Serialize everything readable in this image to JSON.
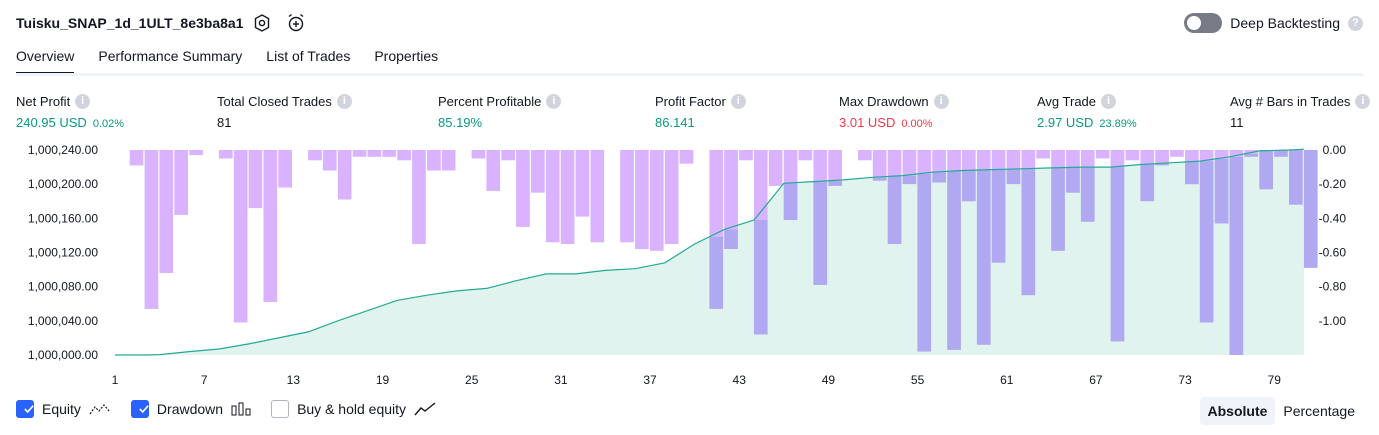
{
  "header": {
    "title": "Tuisku_SNAP_1d_1ULT_8e3ba8a1",
    "settings_icon": "gear-icon",
    "alert_icon": "alarm-add-icon",
    "deep_backtesting_label": "Deep Backtesting",
    "deep_backtesting_on": false
  },
  "tabs": [
    {
      "label": "Overview",
      "active": true
    },
    {
      "label": "Performance Summary",
      "active": false
    },
    {
      "label": "List of Trades",
      "active": false
    },
    {
      "label": "Properties",
      "active": false
    }
  ],
  "stats": {
    "net_profit": {
      "label": "Net Profit",
      "value": "240.95 USD",
      "sub": "0.02%"
    },
    "total_closed_trades": {
      "label": "Total Closed Trades",
      "value": "81"
    },
    "percent_profitable": {
      "label": "Percent Profitable",
      "value": "85.19%"
    },
    "profit_factor": {
      "label": "Profit Factor",
      "value": "86.141"
    },
    "max_drawdown": {
      "label": "Max Drawdown",
      "value": "3.01 USD",
      "sub": "0.00%"
    },
    "avg_trade": {
      "label": "Avg Trade",
      "value": "2.97 USD",
      "sub": "23.89%"
    },
    "avg_bars": {
      "label": "Avg # Bars in Trades",
      "value": "11"
    }
  },
  "colors": {
    "equity_line": "#22ab94",
    "equity_fill": "#e0f3ee",
    "drawdown_bar": "#d9b3ff",
    "drawdown_bar_overlap": "#b0a8f0",
    "positive": "#089981",
    "negative": "#f23645",
    "checkbox": "#2962ff"
  },
  "legend": {
    "equity_label": "Equity",
    "equity_checked": true,
    "drawdown_label": "Drawdown",
    "drawdown_checked": true,
    "buyhold_label": "Buy & hold equity",
    "buyhold_checked": false
  },
  "mode": {
    "absolute_label": "Absolute",
    "percentage_label": "Percentage",
    "selected": "Absolute"
  },
  "chart_data": {
    "type": "line",
    "x_ticks": [
      "1",
      "7",
      "13",
      "19",
      "25",
      "31",
      "37",
      "43",
      "49",
      "55",
      "61",
      "67",
      "73",
      "79"
    ],
    "y_left_ticks": [
      "1,000,240.00",
      "1,000,200.00",
      "1,000,160.00",
      "1,000,120.00",
      "1,000,080.00",
      "1,000,040.00",
      "1,000,000.00"
    ],
    "y_right_ticks": [
      "0.00",
      "-0.20",
      "-0.40",
      "-0.60",
      "-0.80",
      "-1.00"
    ],
    "xlim": [
      1,
      81
    ],
    "ylim_left": [
      1000000,
      1000240
    ],
    "ylim_right": [
      -1.2,
      0
    ],
    "equity": {
      "x": [
        1,
        3,
        4,
        6,
        8,
        10,
        12,
        14,
        16,
        18,
        20,
        22,
        24,
        26,
        28,
        30,
        32,
        34,
        36,
        38,
        40,
        42,
        44,
        46,
        48,
        50,
        52,
        54,
        56,
        58,
        60,
        62,
        64,
        66,
        68,
        70,
        72,
        74,
        76,
        78,
        80,
        81
      ],
      "y": [
        1000000.0,
        1000000.0,
        1000000.5,
        1000004,
        1000007,
        1000013,
        1000020,
        1000027,
        1000040,
        1000052,
        1000064,
        1000070,
        1000075,
        1000078,
        1000087,
        1000095,
        1000095,
        1000099,
        1000101,
        1000108,
        1000130,
        1000147,
        1000158,
        1000201,
        1000203,
        1000205,
        1000208,
        1000210,
        1000214,
        1000216,
        1000217,
        1000218,
        1000219,
        1000220,
        1000220,
        1000223,
        1000225,
        1000227,
        1000232,
        1000239,
        1000240,
        1000240.95
      ]
    },
    "drawdown": {
      "x": [
        1,
        2,
        3,
        4,
        5,
        6,
        7,
        8,
        9,
        10,
        11,
        12,
        13,
        14,
        15,
        16,
        17,
        18,
        19,
        20,
        21,
        22,
        23,
        24,
        25,
        26,
        27,
        28,
        29,
        30,
        31,
        32,
        33,
        34,
        35,
        36,
        37,
        38,
        39,
        40,
        41,
        42,
        43,
        44,
        45,
        46,
        47,
        48,
        49,
        50,
        51,
        52,
        53,
        54,
        55,
        56,
        57,
        58,
        59,
        60,
        61,
        62,
        63,
        64,
        65,
        66,
        67,
        68,
        69,
        70,
        71,
        72,
        73,
        74,
        75,
        76,
        77,
        78,
        79,
        80,
        81
      ],
      "y": [
        0,
        -0.09,
        -0.93,
        -0.72,
        -0.38,
        -0.03,
        0,
        -0.05,
        -1.01,
        -0.34,
        -0.89,
        -0.22,
        0,
        -0.06,
        -0.12,
        -0.29,
        -0.04,
        -0.04,
        -0.04,
        -0.06,
        -0.55,
        -0.12,
        -0.12,
        0,
        -0.05,
        -0.24,
        -0.06,
        -0.45,
        -0.25,
        -0.54,
        -0.55,
        -0.39,
        -0.54,
        0,
        -0.54,
        -0.58,
        -0.59,
        -0.55,
        -0.08,
        0,
        -0.93,
        -0.58,
        -0.06,
        -1.08,
        -0.21,
        -0.41,
        -0.06,
        -0.79,
        -0.21,
        0,
        -0.06,
        -0.18,
        -0.55,
        -0.2,
        -1.18,
        -0.19,
        -1.17,
        -0.3,
        -1.14,
        -0.66,
        -0.2,
        -0.85,
        -0.05,
        -0.59,
        -0.25,
        -0.42,
        -0.05,
        -1.12,
        -0.06,
        -0.3,
        -0.09,
        -0.04,
        -0.2,
        -1.01,
        -0.43,
        -1.2,
        -0.04,
        -0.23,
        -0.04,
        -0.32,
        -0.69
      ]
    }
  }
}
